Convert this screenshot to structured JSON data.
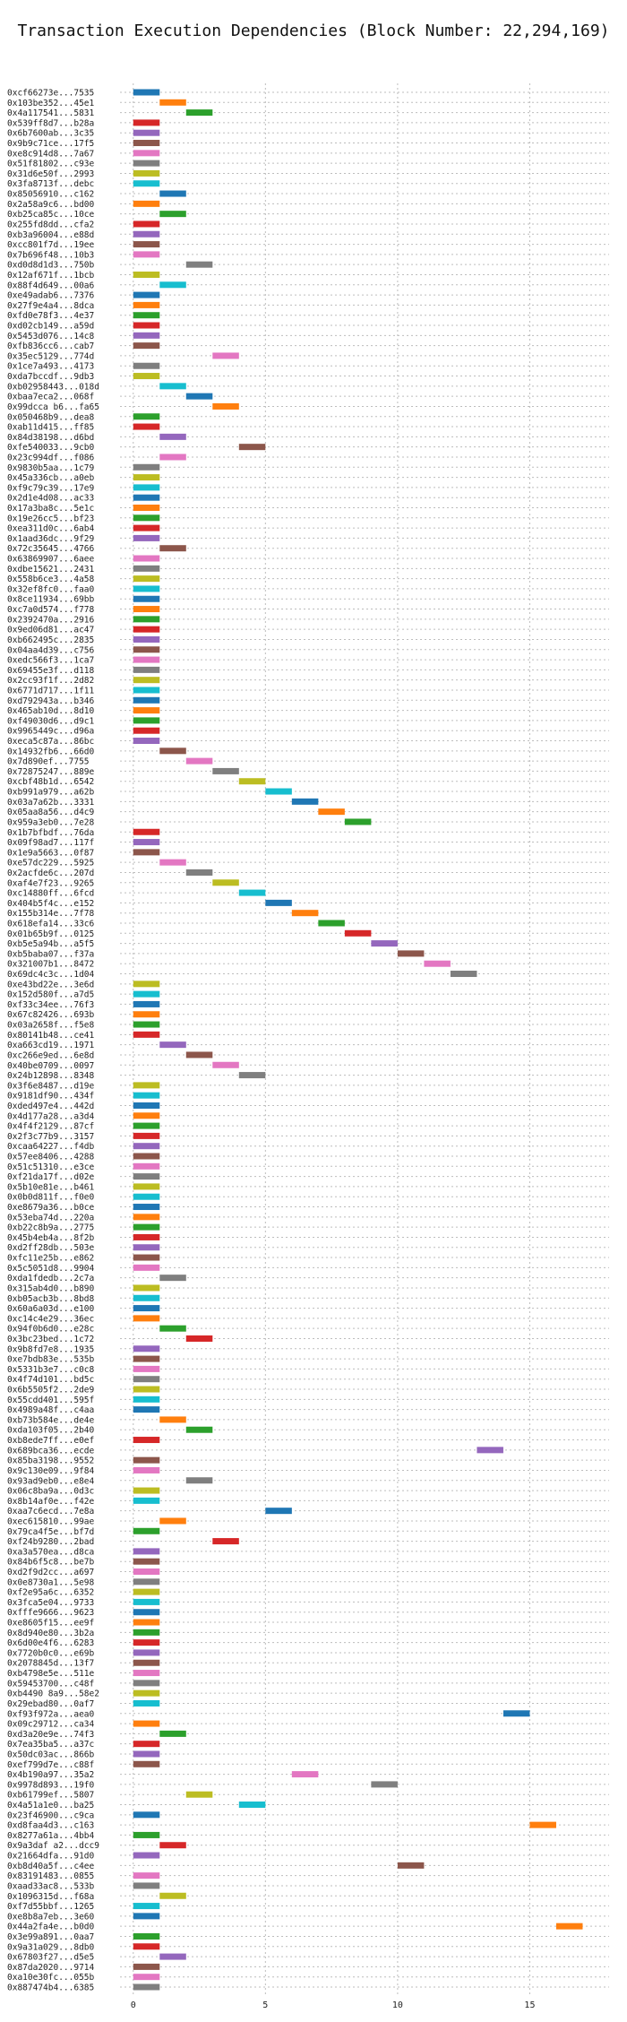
{
  "chart_data": {
    "type": "bar",
    "orientation": "horizontal",
    "title": "Transaction Execution Dependencies (Block Number: 22,294,169)",
    "xlabel": "",
    "ylabel": "",
    "xlim": [
      -0.5,
      18
    ],
    "xticks": [
      0,
      5,
      10,
      15
    ],
    "grid": true,
    "bar_length": 1,
    "colors": [
      "#1f77b4",
      "#ff7f0e",
      "#2ca02c",
      "#d62728",
      "#9467bd",
      "#8c564b",
      "#e377c2",
      "#7f7f7f",
      "#bcbd22",
      "#17becf"
    ],
    "categories": [
      "0xcf66273e...7535",
      "0x103be352...45e1",
      "0x4a117541...5831",
      "0x539ff8d7...b28a",
      "0x6b7600ab...3c35",
      "0x9b9c71ce...17f5",
      "0xe8c914d8...7a67",
      "0x51f81802...c93e",
      "0x31d6e50f...2993",
      "0x3fa8713f...debc",
      "0x85056910...c162",
      "0x2a58a9c6...bd00",
      "0xb25ca85c...10ce",
      "0x255fd8dd...cfa2",
      "0xb3a96004...e88d",
      "0xcc801f7d...19ee",
      "0x7b696f48...10b3",
      "0xd0d8d1d3...750b",
      "0x12af671f...1bcb",
      "0x88f4d649...00a6",
      "0xe49adab6...7376",
      "0x27f9e4a4...8dca",
      "0xfd0e78f3...4e37",
      "0xd02cb149...a59d",
      "0x5453d076...14c8",
      "0xfb836cc6...cab7",
      "0x35ec5129...774d",
      "0x1ce7a493...4173",
      "0xda7bccdf...9db3",
      "0xb02958443...018d",
      "0xbaa7eca2...068f",
      "0x99dcca b6...fa65",
      "0x050468b9...dea8",
      "0xab11d415...ff85",
      "0x84d38198...d6bd",
      "0xfe540033...9cb0",
      "0x23c994df...f086",
      "0x9830b5aa...1c79",
      "0x45a336cb...a0eb",
      "0xf9c79c39...17e9",
      "0x2d1e4d08...ac33",
      "0x17a3ba8c...5e1c",
      "0x19e26cc5...bf23",
      "0xea311d0c...6ab4",
      "0x1aad36dc...9f29",
      "0x72c35645...4766",
      "0x63869907...6aee",
      "0xdbe15621...2431",
      "0x558b6ce3...4a58",
      "0x32ef8fc0...faa0",
      "0x8ce11934...69bb",
      "0xc7a0d574...f778",
      "0x2392470a...2916",
      "0x9ed06d81...ac47",
      "0xb662495c...2835",
      "0x04aa4d39...c756",
      "0xedc566f3...1ca7",
      "0x69455e3f...d118",
      "0x2cc93f1f...2d82",
      "0x6771d717...1f11",
      "0xd792943a...b346",
      "0x465ab10d...8d10",
      "0xf49030d6...d9c1",
      "0x9965449c...d96a",
      "0xeca5c87a...86bc",
      "0x14932fb6...66d0",
      "0x7d890ef...7755",
      "0x72875247...889e",
      "0xcbf48b1d...6542",
      "0xb991a979...a62b",
      "0x03a7a62b...3331",
      "0x05aa8a56...d4c9",
      "0x959a3eb0...7e28",
      "0x1b7bfbdf...76da",
      "0x09f98ad7...117f",
      "0x1e9a5663...0f87",
      "0xe57dc229...5925",
      "0x2acfde6c...207d",
      "0xaf4e7f23...9265",
      "0xc14880ff...6fcd",
      "0x404b5f4c...e152",
      "0x155b314e...7f78",
      "0x618efa14...33c6",
      "0x01b65b9f...0125",
      "0xb5e5a94b...a5f5",
      "0xb5baba07...f37a",
      "0x321007b1...8472",
      "0x69dc4c3c...1d04",
      "0xe43bd22e...3e6d",
      "0x152d580f...a7d5",
      "0xf33c34ee...76f3",
      "0x67c82426...693b",
      "0x03a2658f...f5e8",
      "0x80141b48...ce41",
      "0xa663cd19...1971",
      "0xc266e9ed...6e8d",
      "0x40be0709...0097",
      "0x24b12898...8348",
      "0x3f6e8487...d19e",
      "0x9181df90...434f",
      "0xded497e4...442d",
      "0x4d177a28...a3d4",
      "0x4f4f2129...87cf",
      "0x2f3c77b9...3157",
      "0xcaa64227...f4db",
      "0x57ee8406...4288",
      "0x51c51310...e3ce",
      "0xf21da17f...d02e",
      "0x5b10e81e...b461",
      "0x0b0d811f...f0e0",
      "0xe8679a36...b0ce",
      "0x53eba74d...220a",
      "0xb22c8b9a...2775",
      "0x45b4eb4a...8f2b",
      "0xd2ff28db...503e",
      "0xfc11e25b...e862",
      "0x5c5051d8...9904",
      "0xda1fdedb...2c7a",
      "0x315ab4d0...b890",
      "0xb05acb3b...8bd8",
      "0x60a6a03d...e100",
      "0xc14c4e29...36ec",
      "0x94f0b6d0...e28c",
      "0x3bc23bed...1c72",
      "0x9b8fd7e8...1935",
      "0xe7bdb83e...535b",
      "0x5331b3e7...c0c8",
      "0x4f74d101...bd5c",
      "0x6b5505f2...2de9",
      "0x55cdd401...595f",
      "0x4989a48f...c4aa",
      "0xb73b584e...de4e",
      "0xda103f05...2b40",
      "0xb8ede7ff...e0ef",
      "0x689bca36...ecde",
      "0x85ba3198...9552",
      "0x9c130e09...9f84",
      "0x93ad9eb0...e8e4",
      "0x06c8ba9a...0d3c",
      "0x8b14af0e...f42e",
      "0xaa7c6ecd...7e8a",
      "0xec615810...99ae",
      "0x79ca4f5e...bf7d",
      "0xf24b9280...2bad",
      "0xa3a570ea...d8ca",
      "0x84b6f5c8...be7b",
      "0xd2f9d2cc...a697",
      "0x0e8730a1...5e98",
      "0xf2e95a6c...6352",
      "0x3fca5e04...9733",
      "0xfffe9666...9623",
      "0xe8605f15...ee9f",
      "0x8d940e80...3b2a",
      "0x6d00e4f6...6283",
      "0x7720b0c0...e69b",
      "0x2078845d...13f7",
      "0xb4798e5e...511e",
      "0x59453700...c48f",
      "0xb4490 8a9...58e2",
      "0x29ebad80...0af7",
      "0xf93f972a...aea0",
      "0x09c29712...ca34",
      "0xd3a20e9e...74f3",
      "0x7ea35ba5...a37c",
      "0x50dc03ac...866b",
      "0xef799d7e...c88f",
      "0x4b190a97...35a2",
      "0x9978d893...19f0",
      "0xb61799ef...5807",
      "0x4a51a1e0...ba25",
      "0x23f46900...c9ca",
      "0xd8faa4d3...c163",
      "0x8277a61a...4bb4",
      "0x9a3daf a2...dcc9",
      "0x21664dfa...91d0",
      "0xb8d40a5f...c4ee",
      "0x83191483...0855",
      "0xaad33ac8...533b",
      "0x1096315d...f68a",
      "0xf7d55bbf...1265",
      "0xe8b8a7eb...3e60",
      "0x44a2fa4e...b0d0",
      "0x3e99a891...0aa7",
      "0x9a31a029...8db0",
      "0x67803f27...d5e5",
      "0x87da2020...9714",
      "0xa10e30fc...055b",
      "0x887474b4...6385"
    ],
    "starts": [
      0,
      1,
      2,
      0,
      0,
      0,
      0,
      0,
      0,
      0,
      1,
      0,
      1,
      0,
      0,
      0,
      0,
      2,
      0,
      1,
      0,
      0,
      0,
      0,
      0,
      0,
      3,
      0,
      0,
      1,
      2,
      3,
      0,
      0,
      1,
      4,
      1,
      0,
      0,
      0,
      0,
      0,
      0,
      0,
      0,
      1,
      0,
      0,
      0,
      0,
      0,
      0,
      0,
      0,
      0,
      0,
      0,
      0,
      0,
      0,
      0,
      0,
      0,
      0,
      0,
      1,
      2,
      3,
      4,
      5,
      6,
      7,
      8,
      0,
      0,
      0,
      1,
      2,
      3,
      4,
      5,
      6,
      7,
      8,
      9,
      10,
      11,
      12,
      0,
      0,
      0,
      0,
      0,
      0,
      1,
      2,
      3,
      4,
      0,
      0,
      0,
      0,
      0,
      0,
      0,
      0,
      0,
      0,
      0,
      0,
      0,
      0,
      0,
      0,
      0,
      0,
      0,
      1,
      0,
      0,
      0,
      0,
      1,
      2,
      0,
      0,
      0,
      0,
      0,
      0,
      0,
      1,
      2,
      0,
      13,
      0,
      0,
      2,
      0,
      0,
      5,
      1,
      0,
      3,
      0,
      0,
      0,
      0,
      0,
      0,
      0,
      0,
      0,
      0,
      0,
      0,
      0,
      0,
      0,
      0,
      14,
      0,
      1,
      0,
      0,
      0,
      6,
      9,
      2,
      4,
      0,
      15,
      0,
      1,
      0,
      10,
      0,
      0,
      1,
      0,
      0,
      16,
      0,
      0,
      1,
      0,
      0,
      0
    ],
    "color_index": [
      0,
      1,
      2,
      3,
      4,
      5,
      6,
      7,
      8,
      9,
      0,
      1,
      2,
      3,
      4,
      5,
      6,
      7,
      8,
      9,
      0,
      1,
      2,
      3,
      4,
      5,
      6,
      7,
      8,
      9,
      0,
      1,
      2,
      3,
      4,
      5,
      6,
      7,
      8,
      9,
      0,
      1,
      2,
      3,
      4,
      5,
      6,
      7,
      8,
      9,
      0,
      1,
      2,
      3,
      4,
      5,
      6,
      7,
      8,
      9,
      0,
      1,
      2,
      3,
      4,
      5,
      6,
      7,
      8,
      9,
      0,
      1,
      2,
      3,
      4,
      5,
      6,
      7,
      8,
      9,
      0,
      1,
      2,
      3,
      4,
      5,
      6,
      7,
      8,
      9,
      0,
      1,
      2,
      3,
      4,
      5,
      6,
      7,
      8,
      9,
      0,
      1,
      2,
      3,
      4,
      5,
      6,
      7,
      8,
      9,
      0,
      1,
      2,
      3,
      4,
      5,
      6,
      7,
      8,
      9,
      0,
      1,
      2,
      3,
      4,
      5,
      6,
      7,
      8,
      9,
      0,
      1,
      2,
      3,
      4,
      5,
      6,
      7,
      8,
      9,
      0,
      1,
      2,
      3,
      4,
      5,
      6,
      7,
      8,
      9,
      0,
      1,
      2,
      3,
      4,
      5,
      6,
      7,
      8,
      9,
      0,
      1,
      2,
      3,
      4,
      5,
      6,
      7,
      8,
      9,
      0,
      1,
      2,
      3,
      4,
      5,
      6,
      7,
      8,
      9,
      0,
      1,
      2,
      3,
      4,
      5,
      6,
      7
    ]
  }
}
